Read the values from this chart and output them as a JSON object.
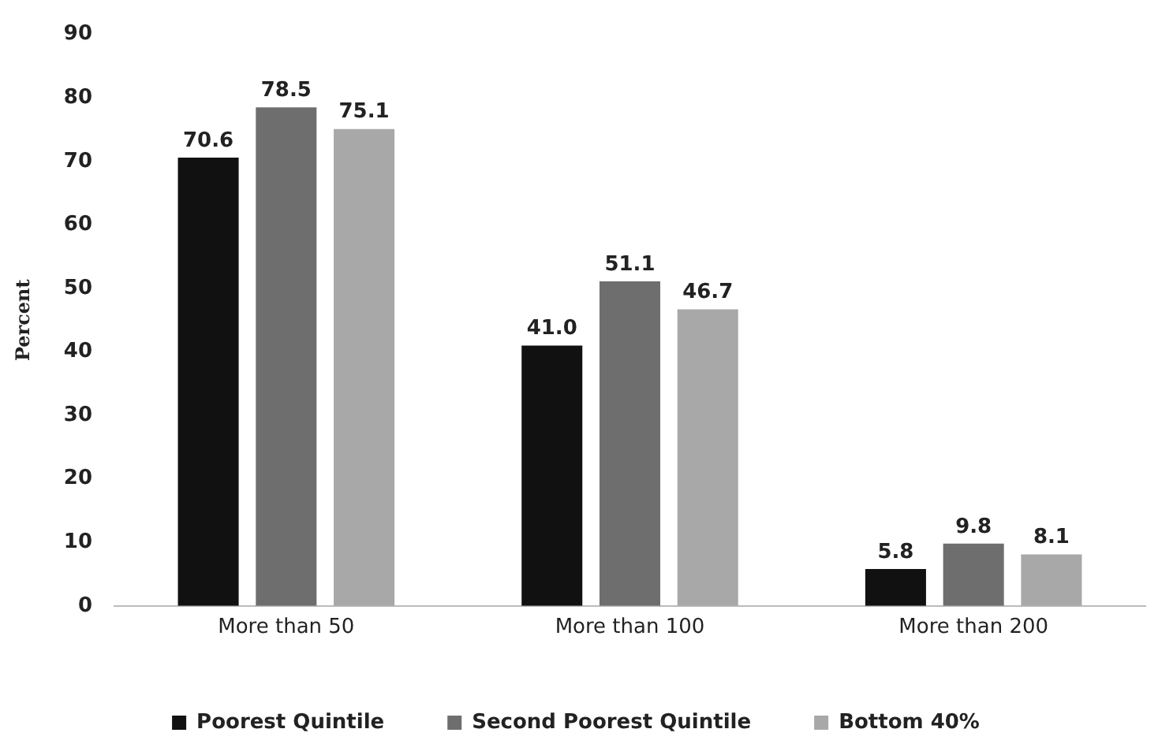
{
  "chart_data": {
    "type": "bar",
    "ylabel": "Percent",
    "categories": [
      "More than 50",
      "More than 100",
      "More than 200"
    ],
    "series": [
      {
        "name": "Poorest Quintile",
        "color": "#111111",
        "values": [
          70.6,
          41.0,
          5.8
        ],
        "value_labels": [
          "70.6",
          "41.0",
          "5.8"
        ]
      },
      {
        "name": "Second Poorest Quintile",
        "color": "#6e6e6e",
        "values": [
          78.5,
          51.1,
          9.8
        ],
        "value_labels": [
          "78.5",
          "51.1",
          "9.8"
        ]
      },
      {
        "name": "Bottom 40%",
        "color": "#a8a8a8",
        "values": [
          75.1,
          46.7,
          8.1
        ],
        "value_labels": [
          "75.1",
          "46.7",
          "8.1"
        ]
      }
    ],
    "ylim": [
      0,
      90
    ],
    "yticks": [
      0,
      10,
      20,
      30,
      40,
      50,
      60,
      70,
      80,
      90
    ],
    "grid": false,
    "legend": "bottom"
  }
}
